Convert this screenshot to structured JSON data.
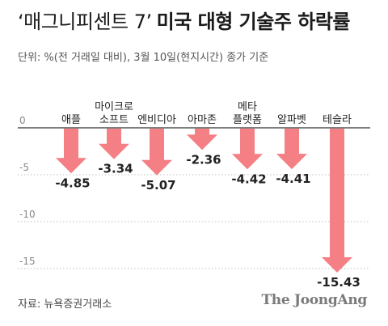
{
  "header": {
    "title_light": "‘매그니피센트 7’",
    "title_bold": "미국 대형 기술주 하락률",
    "unit": "단위: %(전 거래일 대비), 3월 10일(현지시간) 종가 기준"
  },
  "footer": {
    "source": "자료: 뉴욕증권거래소",
    "logo": "The JoongAng"
  },
  "colors": {
    "arrow": "#f47f84",
    "grid": "#aaaaaa",
    "axis": "#333333",
    "tick_label": "#888888",
    "value_label": "#222222"
  },
  "chart_data": {
    "type": "bar",
    "categories": [
      "애플",
      "마이크로\n소프트",
      "엔비디아",
      "아마존",
      "메타\n플랫폼",
      "알파벳",
      "테슬라"
    ],
    "values": [
      -4.85,
      -3.34,
      -5.07,
      -2.36,
      -4.42,
      -4.41,
      -15.43
    ],
    "value_labels": [
      "-4.85",
      "-3.34",
      "-5.07",
      "-2.36",
      "-4.42",
      "-4.41",
      "-15.43"
    ],
    "y_ticks": [
      0,
      -5,
      -10,
      -15
    ],
    "y_tick_labels": [
      "0",
      "-5",
      "-10",
      "-15"
    ],
    "ylim": [
      -16.5,
      0
    ],
    "grid": true,
    "mark_style": "downward arrows",
    "title": "",
    "xlabel": "",
    "ylabel": ""
  }
}
